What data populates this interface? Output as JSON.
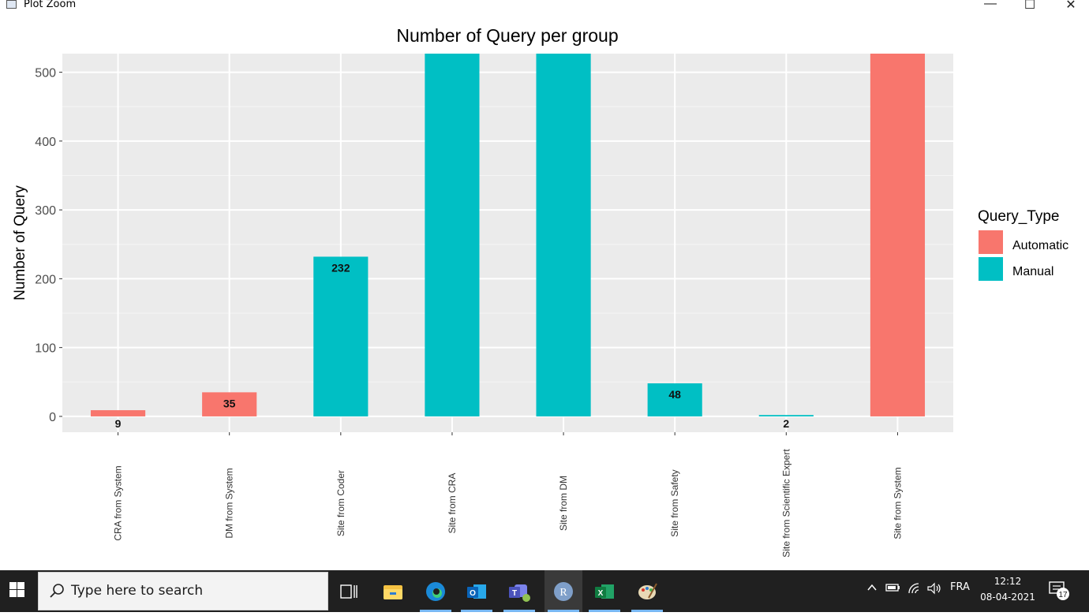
{
  "window": {
    "title": "Plot Zoom",
    "controls": {
      "minimize": "—",
      "maximize": "☐",
      "close": "✕"
    }
  },
  "chart_data": {
    "type": "bar",
    "title": "Number of Query per group",
    "xlabel": "",
    "ylabel": "Number of Query",
    "ylim": [
      -23,
      527
    ],
    "yticks": [
      0,
      100,
      200,
      300,
      400,
      500
    ],
    "grid": true,
    "categories": [
      "CRA from System",
      "DM from System",
      "Site from Coder",
      "Site from CRA",
      "Site from DM",
      "Site from Safety",
      "Site from Scientific Expert",
      "Site from System"
    ],
    "values": [
      9,
      35,
      232,
      527,
      527,
      48,
      2,
      527
    ],
    "types": [
      "Automatic",
      "Automatic",
      "Manual",
      "Manual",
      "Manual",
      "Manual",
      "Manual",
      "Automatic"
    ],
    "labels": [
      "9",
      "35",
      "232",
      "",
      "",
      "48",
      "2",
      ""
    ],
    "legend": {
      "title": "Query_Type",
      "position": "right",
      "entries": [
        {
          "name": "Automatic",
          "color": "#F8766D"
        },
        {
          "name": "Manual",
          "color": "#00BFC4"
        }
      ]
    }
  },
  "taskbar": {
    "search_placeholder": "Type here to search",
    "apps": [
      "task-view",
      "file-explorer",
      "edge",
      "outlook",
      "teams",
      "r",
      "excel",
      "paint"
    ],
    "language": "FRA",
    "time": "12:12",
    "date": "08-04-2021",
    "notification_count": "17"
  }
}
